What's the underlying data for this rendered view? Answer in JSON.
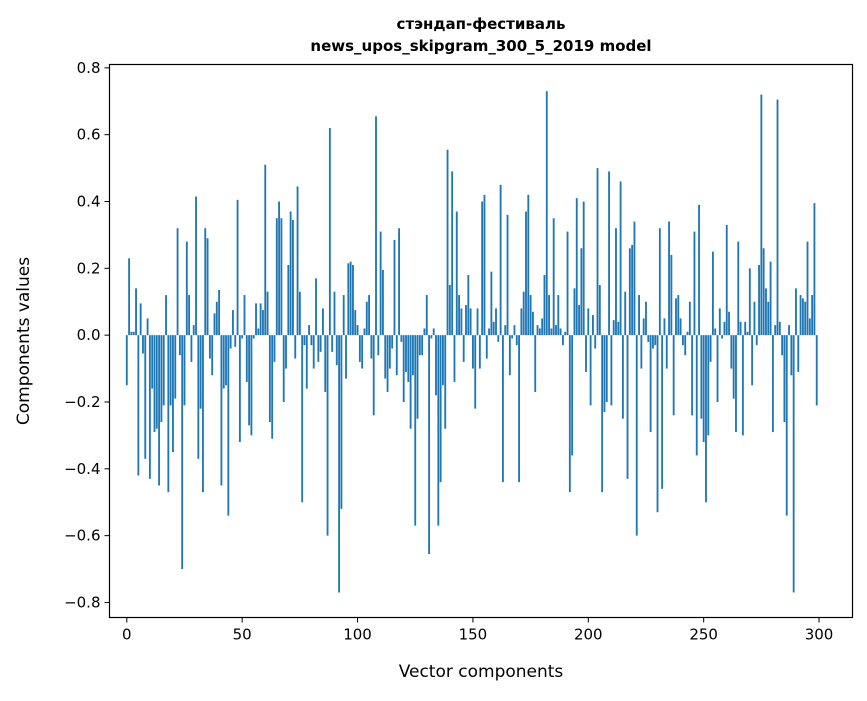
{
  "chart_data": {
    "type": "bar",
    "title": "стэндап-фестиваль",
    "subtitle": "news_upos_skipgram_300_5_2019 model",
    "xlabel": "Vector components",
    "ylabel": "Components values",
    "xlim": [
      -7.5,
      314.5
    ],
    "ylim": [
      -0.845,
      0.81
    ],
    "xticks": [
      0,
      50,
      100,
      150,
      200,
      250,
      300
    ],
    "xtick_labels": [
      "0",
      "50",
      "100",
      "150",
      "200",
      "250",
      "300"
    ],
    "yticks": [
      -0.8,
      -0.6,
      -0.4,
      -0.2,
      0.0,
      0.2,
      0.4,
      0.6,
      0.8
    ],
    "ytick_labels": [
      "−0.8",
      "−0.6",
      "−0.4",
      "−0.2",
      "0.0",
      "0.2",
      "0.4",
      "0.6",
      "0.8"
    ],
    "grid": false,
    "color": "#1f77b4",
    "values": [
      -0.15,
      0.23,
      0.01,
      0.01,
      0.14,
      -0.42,
      0.095,
      -0.055,
      -0.37,
      0.05,
      -0.43,
      -0.16,
      -0.29,
      -0.28,
      -0.45,
      -0.26,
      -0.21,
      0.12,
      -0.47,
      -0.21,
      -0.35,
      -0.19,
      0.32,
      -0.06,
      -0.7,
      -0.21,
      0.28,
      0.12,
      -0.08,
      0.03,
      0.415,
      -0.37,
      -0.22,
      -0.47,
      0.32,
      0.29,
      -0.07,
      -0.12,
      0.065,
      0.1,
      0.135,
      -0.45,
      -0.16,
      -0.15,
      -0.54,
      -0.04,
      0.075,
      -0.035,
      0.405,
      -0.32,
      -0.01,
      0.12,
      -0.14,
      -0.27,
      -0.3,
      -0.01,
      0.095,
      0.02,
      0.095,
      0.075,
      0.51,
      0.13,
      -0.26,
      -0.31,
      -0.08,
      0.35,
      0.4,
      0.35,
      -0.2,
      -0.1,
      0.21,
      0.37,
      0.345,
      -0.07,
      0.445,
      0.13,
      -0.5,
      -0.03,
      -0.16,
      0.03,
      -0.03,
      -0.1,
      0.17,
      -0.08,
      -0.05,
      0.08,
      -0.17,
      -0.6,
      0.62,
      -0.05,
      0.13,
      -0.09,
      -0.77,
      -0.52,
      0.12,
      -0.13,
      0.215,
      0.22,
      0.21,
      0.075,
      0.03,
      -0.08,
      -0.1,
      0.02,
      0.1,
      0.12,
      -0.07,
      -0.24,
      0.655,
      -0.06,
      0.31,
      0.195,
      -0.13,
      -0.17,
      -0.1,
      -0.04,
      0.285,
      -0.12,
      0.32,
      -0.02,
      -0.2,
      -0.11,
      -0.14,
      -0.28,
      -0.12,
      -0.57,
      -0.25,
      -0.06,
      -0.06,
      0.02,
      0.12,
      -0.655,
      -0.01,
      0.02,
      -0.18,
      -0.57,
      -0.44,
      -0.15,
      -0.28,
      0.555,
      0.15,
      0.49,
      -0.14,
      0.37,
      0.12,
      0.08,
      -0.08,
      0.09,
      0.18,
      0.08,
      -0.1,
      -0.22,
      0.08,
      -0.1,
      0.4,
      0.42,
      -0.07,
      0.02,
      0.19,
      0.04,
      0.08,
      -0.02,
      0.45,
      -0.44,
      0.03,
      0.36,
      -0.12,
      -0.01,
      0.03,
      -0.03,
      -0.44,
      0.08,
      0.13,
      0.37,
      0.42,
      0.12,
      0.07,
      -0.17,
      0.03,
      0.02,
      0.05,
      0.18,
      0.73,
      0.12,
      0.02,
      0.35,
      0.03,
      0.12,
      0.02,
      -0.03,
      0.01,
      0.31,
      -0.47,
      -0.36,
      0.14,
      0.41,
      0.09,
      0.26,
      0.4,
      -0.11,
      0.08,
      -0.21,
      0.06,
      -0.04,
      0.5,
      0.15,
      -0.47,
      -0.23,
      -0.2,
      0.49,
      -0.21,
      0.045,
      0.32,
      0.04,
      0.46,
      -0.25,
      0.13,
      -0.43,
      0.26,
      0.27,
      0.34,
      -0.6,
      0.12,
      -0.1,
      0.05,
      0.1,
      -0.02,
      -0.29,
      -0.04,
      -0.03,
      -0.53,
      0.32,
      -0.46,
      0.05,
      -0.1,
      0.34,
      0.24,
      -0.24,
      0.11,
      0.12,
      0.05,
      -0.03,
      -0.06,
      0.01,
      0.1,
      -0.24,
      0.31,
      -0.36,
      0.39,
      -0.25,
      -0.32,
      -0.5,
      -0.3,
      -0.08,
      0.25,
      0.02,
      -0.2,
      0.08,
      -0.01,
      0.04,
      0.33,
      0.07,
      -0.1,
      -0.19,
      -0.29,
      0.28,
      0.04,
      -0.3,
      0.04,
      0.01,
      0.2,
      -0.15,
      0.1,
      -0.03,
      0.21,
      0.72,
      0.26,
      0.14,
      0.1,
      0.22,
      -0.29,
      0.03,
      0.705,
      0.04,
      -0.06,
      -0.26,
      -0.54,
      0.03,
      -0.12,
      -0.77,
      0.14,
      -0.11,
      0.12,
      0.11,
      0.1,
      0.28,
      0.05,
      0.12,
      0.395,
      -0.21
    ]
  }
}
